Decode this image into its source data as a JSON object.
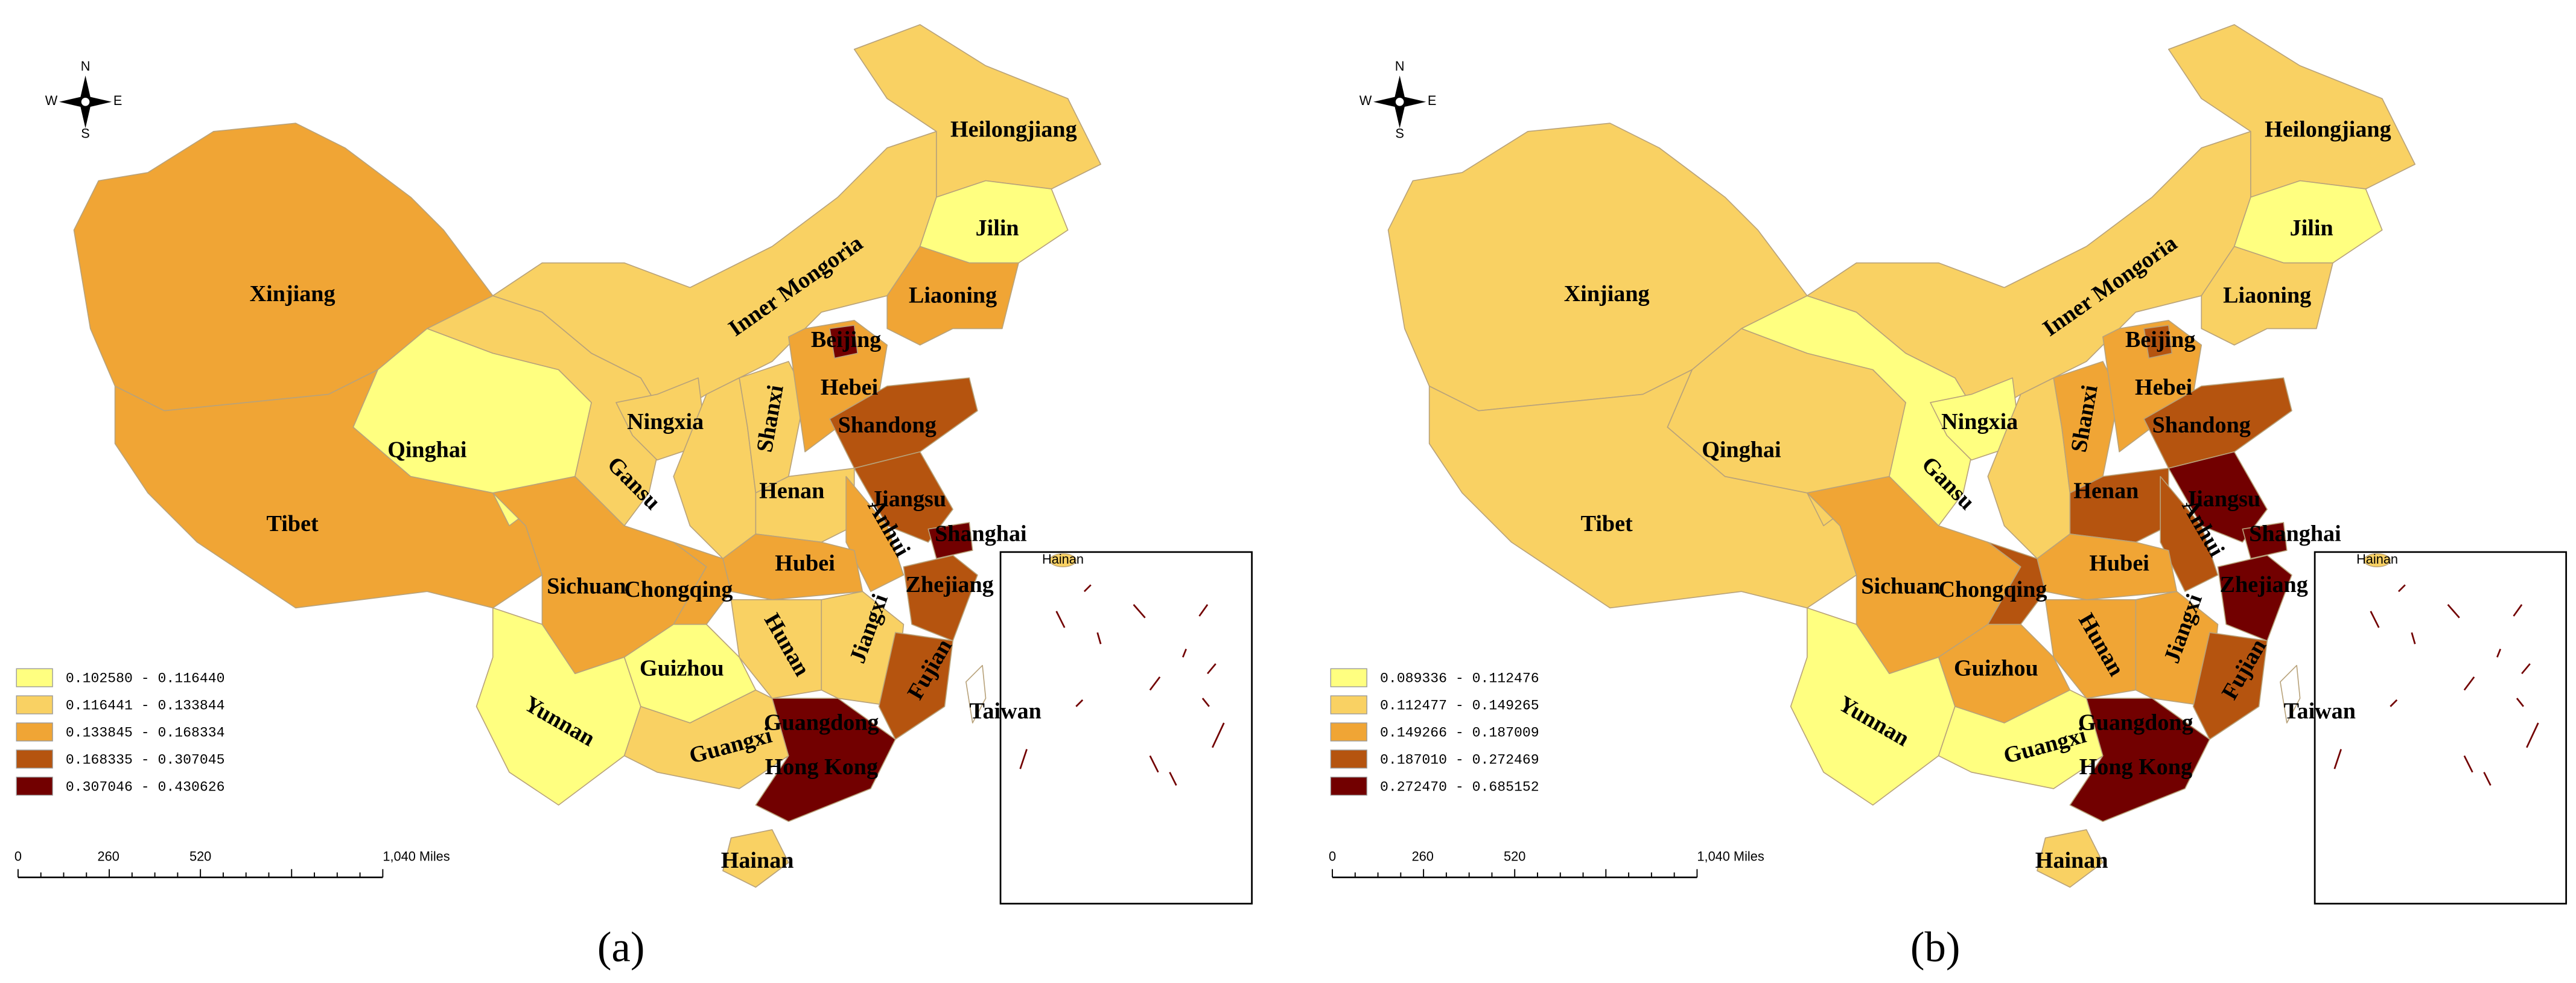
{
  "panels": [
    {
      "label": "(a)",
      "compass": {
        "n": "N",
        "s": "S",
        "e": "E",
        "w": "W"
      },
      "legend": [
        {
          "label": "0.102580 - 0.116440",
          "color": "#ffff80"
        },
        {
          "label": "0.116441 - 0.133844",
          "color": "#f9d163"
        },
        {
          "label": "0.133845 - 0.168334",
          "color": "#f0a535"
        },
        {
          "label": "0.168335 - 0.307045",
          "color": "#b5540f"
        },
        {
          "label": "0.307046 - 0.430626",
          "color": "#720000"
        }
      ],
      "scale": [
        "0",
        "260",
        "520",
        "1,040 Miles"
      ],
      "inset_label": "Hainan",
      "regions": [
        {
          "name": "Xinjiang",
          "color": "#f0a535"
        },
        {
          "name": "Tibet",
          "color": "#f0a535"
        },
        {
          "name": "Qinghai",
          "color": "#ffff80"
        },
        {
          "name": "Gansu",
          "color": "#f9d163"
        },
        {
          "name": "Inner Mongoria",
          "color": "#f9d163"
        },
        {
          "name": "Heilongjiang",
          "color": "#f9d163"
        },
        {
          "name": "Jilin",
          "color": "#ffff80"
        },
        {
          "name": "Liaoning",
          "color": "#f0a535"
        },
        {
          "name": "Ningxia",
          "color": "#f9d163"
        },
        {
          "color": "#f9d163"
        },
        {
          "name": "Shanxi",
          "color": "#f9d163"
        },
        {
          "name": "Hebei",
          "color": "#f0a535"
        },
        {
          "name": "Beijing",
          "color": "#720000"
        },
        {
          "name": "Shandong",
          "color": "#b5540f"
        },
        {
          "name": "Henan",
          "color": "#f9d163"
        },
        {
          "name": "Jiangsu",
          "color": "#b5540f"
        },
        {
          "name": "Anhui",
          "color": "#f0a535"
        },
        {
          "name": "Shanghai",
          "color": "#720000"
        },
        {
          "name": "Zhejiang",
          "color": "#b5540f"
        },
        {
          "name": "Hubei",
          "color": "#f0a535"
        },
        {
          "name": "Sichuan",
          "color": "#f0a535"
        },
        {
          "name": "Chongqing",
          "color": "#f0a535"
        },
        {
          "name": "Hunan",
          "color": "#f9d163"
        },
        {
          "name": "Jiangxi",
          "color": "#f9d163"
        },
        {
          "name": "Fujian",
          "color": "#b5540f"
        },
        {
          "name": "Guizhou",
          "color": "#ffff80"
        },
        {
          "name": "Yunnan",
          "color": "#ffff80"
        },
        {
          "name": "Guangxi",
          "color": "#f9d163"
        },
        {
          "name": "Guangdong",
          "color": "#720000"
        },
        {
          "name": "Hong Kong"
        },
        {
          "name": "Hainan",
          "color": "#f9d163"
        },
        {
          "name": "Taiwan"
        }
      ]
    },
    {
      "label": "(b)",
      "compass": {
        "n": "N",
        "s": "S",
        "e": "E",
        "w": "W"
      },
      "legend": [
        {
          "label": "0.089336 - 0.112476",
          "color": "#ffff80"
        },
        {
          "label": "0.112477 - 0.149265",
          "color": "#f9d163"
        },
        {
          "label": "0.149266 - 0.187009",
          "color": "#f0a535"
        },
        {
          "label": "0.187010 - 0.272469",
          "color": "#b5540f"
        },
        {
          "label": "0.272470 - 0.685152",
          "color": "#720000"
        }
      ],
      "scale": [
        "0",
        "260",
        "520",
        "1,040 Miles"
      ],
      "inset_label": "Hainan",
      "regions": [
        {
          "name": "Xinjiang",
          "color": "#f9d163"
        },
        {
          "name": "Tibet",
          "color": "#f9d163"
        },
        {
          "name": "Qinghai",
          "color": "#f9d163"
        },
        {
          "name": "Gansu",
          "color": "#ffff80"
        },
        {
          "name": "Inner Mongoria",
          "color": "#f9d163"
        },
        {
          "name": "Heilongjiang",
          "color": "#f9d163"
        },
        {
          "name": "Jilin",
          "color": "#ffff80"
        },
        {
          "name": "Liaoning",
          "color": "#f9d163"
        },
        {
          "name": "Ningxia",
          "color": "#ffff80"
        },
        {
          "color": "#f9d163"
        },
        {
          "name": "Shanxi",
          "color": "#f0a535"
        },
        {
          "name": "Hebei",
          "color": "#f0a535"
        },
        {
          "name": "Beijing",
          "color": "#b5540f"
        },
        {
          "name": "Shandong",
          "color": "#b5540f"
        },
        {
          "name": "Henan",
          "color": "#b5540f"
        },
        {
          "name": "Jiangsu",
          "color": "#720000"
        },
        {
          "name": "Anhui",
          "color": "#b5540f"
        },
        {
          "name": "Shanghai",
          "color": "#720000"
        },
        {
          "name": "Zhejiang",
          "color": "#720000"
        },
        {
          "name": "Hubei",
          "color": "#f0a535"
        },
        {
          "name": "Sichuan",
          "color": "#f0a535"
        },
        {
          "name": "Chongqing",
          "color": "#b5540f"
        },
        {
          "name": "Hunan",
          "color": "#f0a535"
        },
        {
          "name": "Jiangxi",
          "color": "#f0a535"
        },
        {
          "name": "Fujian",
          "color": "#b5540f"
        },
        {
          "name": "Guizhou",
          "color": "#f0a535"
        },
        {
          "name": "Yunnan",
          "color": "#ffff80"
        },
        {
          "name": "Guangxi",
          "color": "#ffff80"
        },
        {
          "name": "Guangdong",
          "color": "#720000"
        },
        {
          "name": "Hong Kong"
        },
        {
          "name": "Hainan",
          "color": "#f9d163"
        },
        {
          "name": "Taiwan"
        }
      ]
    }
  ]
}
